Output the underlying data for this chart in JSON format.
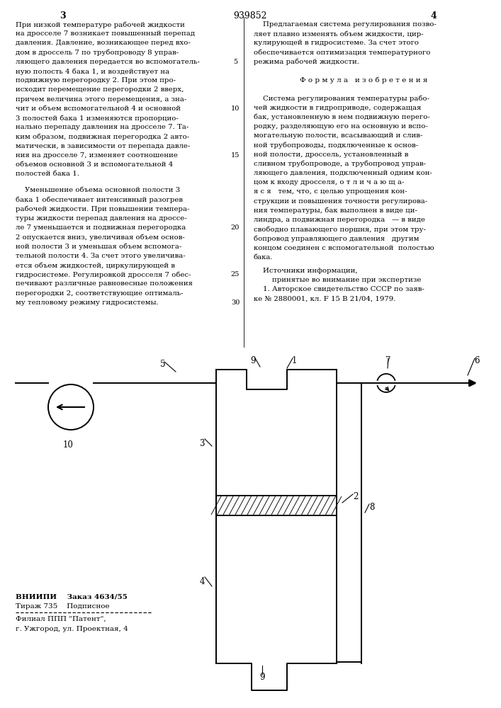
{
  "page_number_left": "3",
  "patent_number": "939852",
  "page_number_right": "4",
  "text_left": [
    "При низкой температуре рабочей жидкости",
    "на дросселе 7 возникает повышенный перепад",
    "давления. Давление, возникающее перед вхо-",
    "дом в дроссель 7 по трубопроводу 8 управ-",
    "ляющего давления передается во вспомогатель-",
    "ную полость 4 бака 1, и воздействует на",
    "подвижную перегородку 2. При этом про-",
    "исходит перемещение перегородки 2 вверх,",
    "причем величина этого перемещения, а зна-",
    "чит и объем вспомогательной 4 и основной",
    "3 полостей бака 1 изменяются пропорцио-",
    "нально перепаду давления на дросселе 7. Та-",
    "ким образом, подвижная перегородка 2 авто-",
    "матически, в зависимости от перепада давле-",
    "ния на дросселе 7, изменяет соотношение",
    "объемов основной 3 и вспомогательной 4",
    "полостей бака 1."
  ],
  "text_left2": [
    "    Уменьшение объема основной полости 3",
    "бака 1 обеспечивает интенсивный разогрев",
    "рабочей жидкости. При повышении темпера-",
    "туры жидкости перепад давления на дроссе-",
    "ле 7 уменьшается и подвижная перегородка",
    "2 опускается вниз, увеличивая объем основ-",
    "ной полости 3 и уменьшая объем вспомога-",
    "тельной полости 4. За счет этого увеличива-",
    "ется объем жидкостей, циркулирующей в",
    "гидросистеме. Регулировкой дросселя 7 обес-",
    "печивают различные равновесные положения",
    "перегородки 2, соответствующие оптималь-",
    "му тепловому режиму гидросистемы."
  ],
  "text_right": [
    "    Предлагаемая система регулирования позво-",
    "ляет плавно изменять объем жидкости, цир-",
    "кулирующей в гидросистеме. За счет этого",
    "обеспечивается оптимизация температурного",
    "режима рабочей жидкости."
  ],
  "formula_header": "Ф о р м у л а   и з о б р е т е н и я",
  "text_right2": [
    "    Система регулирования температуры рабо-",
    "чей жидкости в гидроприводе, содержащая",
    "бак, установленную в нем подвижную перего-",
    "родку, разделяющую его на основную и вспо-",
    "могательную полости, всасывающий и слив-",
    "ной трубопроводы, подключенные к основ-",
    "ной полости, дроссель, установленный в",
    "сливном трубопроводе, а трубопровод управ-",
    "ляющего давления, подключенный одним кон-",
    "цом к входу дросселя, о т л и ч а ю щ а-",
    "я с я   тем, что, с целью упрощения кон-",
    "струкции и повышения точности регулирова-",
    "ния температуры, бак выполнен в виде ци-",
    "линдра, а подвижная перегородка   — в виде",
    "свободно плавающего поршня, при этом тру-",
    "бопровод управляющего давления   другим",
    "концом соединен с вспомогательной  полостью",
    "бака."
  ],
  "sources_header": "    Источники информации,",
  "sources_sub": "        принятые во внимание при экспертизе",
  "sources_text": "    1. Авторское свидетельство СССР по заяв-",
  "sources_text2": "ке № 2880001, кл. F 15 В 21/04, 1979.",
  "footer_left1": "ВНИИПИ    Заказ 4634/55",
  "footer_left2": "Тираж 735    Подписное",
  "footer_left3": "Филиал ППП \"Патент\",",
  "footer_left4": "г. Ужгород, ул. Проектная, 4",
  "bg_color": "#ffffff",
  "text_color": "#000000",
  "line_color": "#000000"
}
